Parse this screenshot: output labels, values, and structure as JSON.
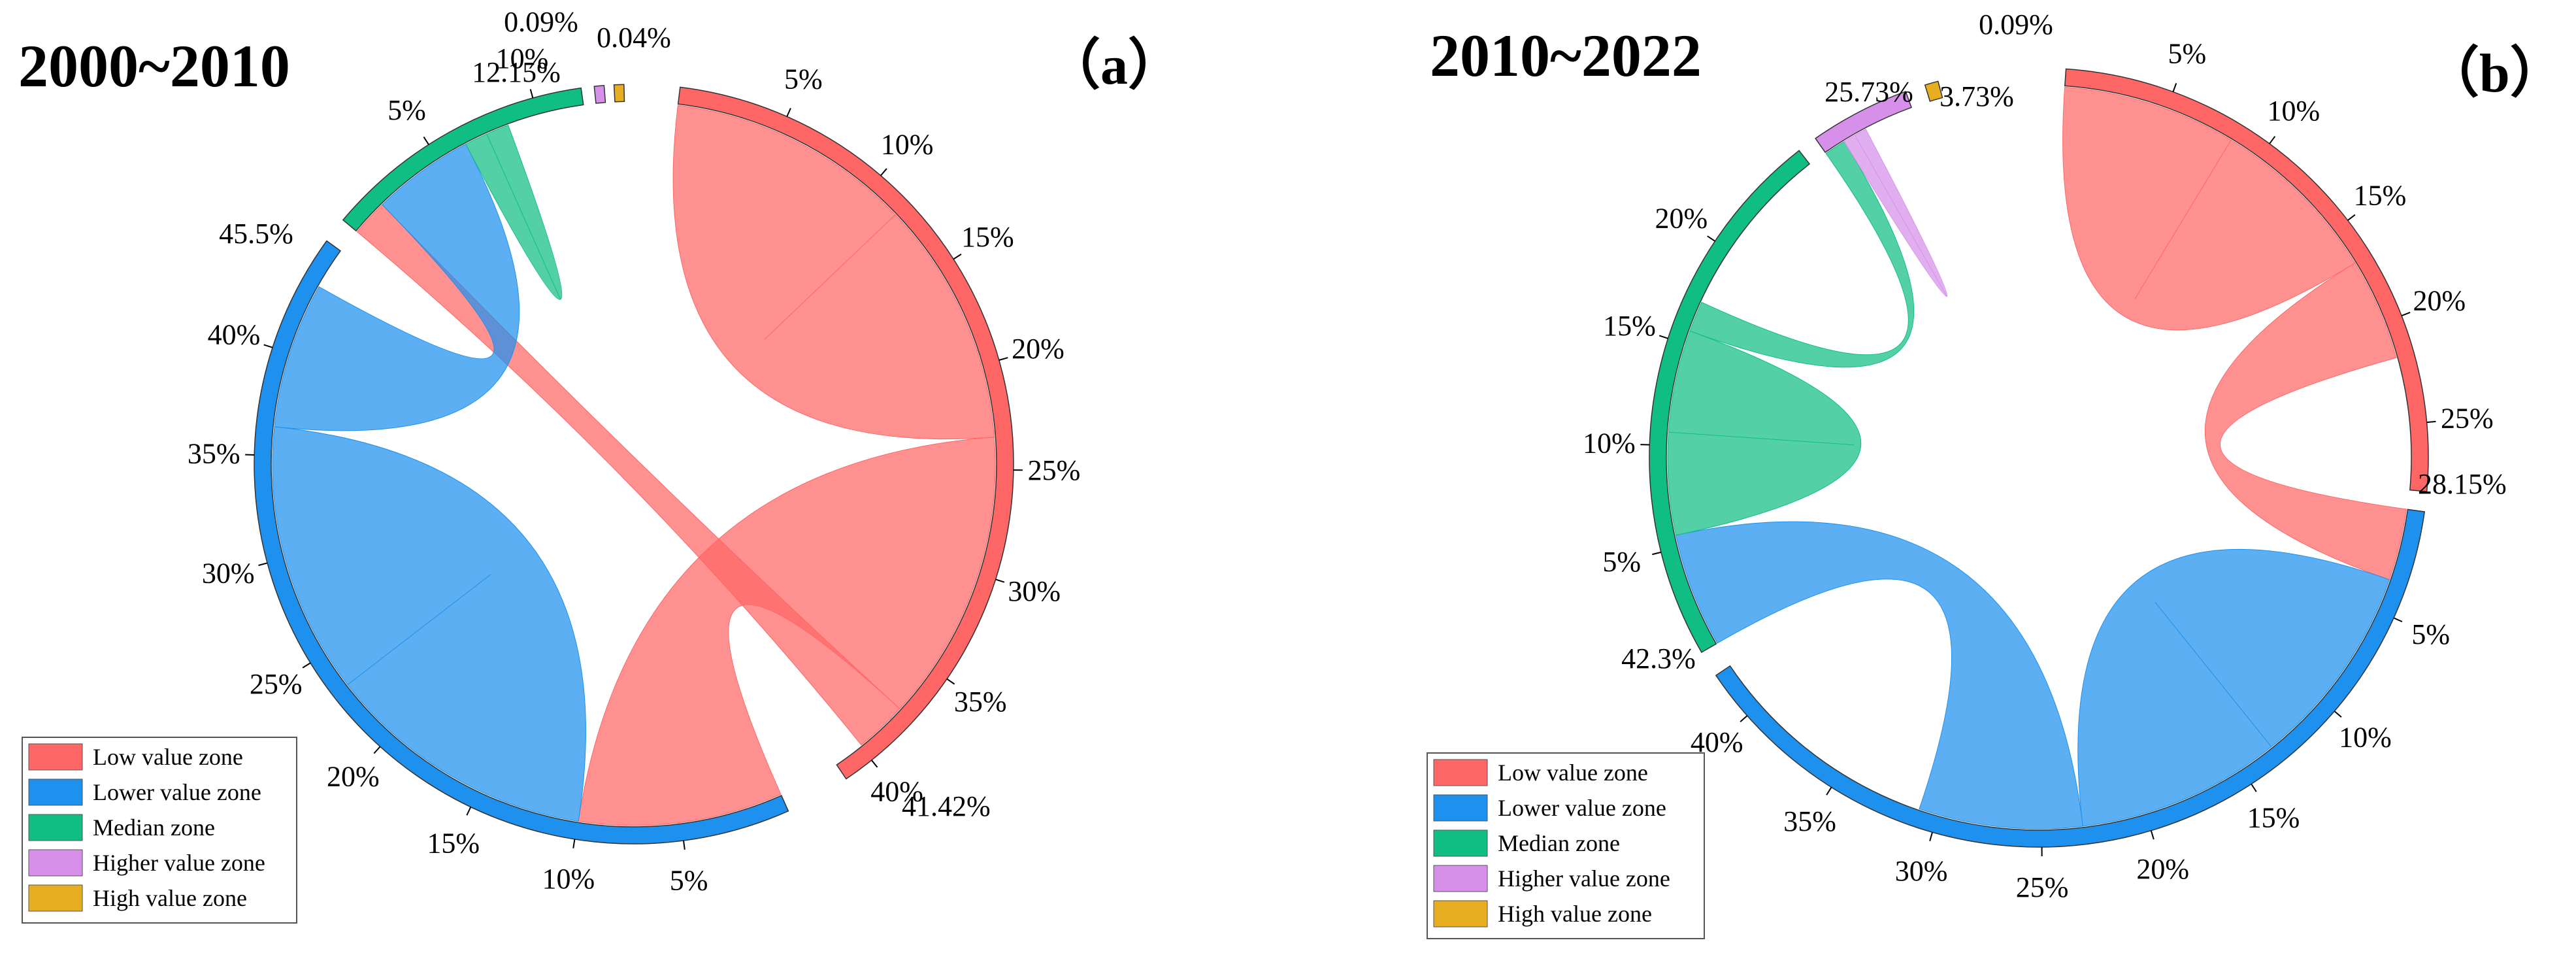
{
  "chart_data": [
    {
      "type": "chord",
      "title": "2000~2010",
      "panel_label": "（a）",
      "legend": [
        {
          "name": "Low value zone",
          "color": "#FF6666"
        },
        {
          "name": "Lower value zone",
          "color": "#1E90EE"
        },
        {
          "name": "Median zone",
          "color": "#10BE84"
        },
        {
          "name": "Higher value zone",
          "color": "#D690EA"
        },
        {
          "name": "High value zone",
          "color": "#E6AE20"
        }
      ],
      "groups": [
        {
          "name": "Low value zone",
          "color": "#FF6666",
          "total_label": "41.42%",
          "ticks": [
            "5%",
            "10%",
            "15%",
            "20%",
            "25%",
            "30%",
            "35%",
            "40%"
          ]
        },
        {
          "name": "Lower value zone",
          "color": "#1E90EE",
          "total_label": "45.5%",
          "ticks": [
            "5%",
            "10%",
            "15%",
            "20%",
            "25%",
            "30%",
            "35%",
            "40%"
          ]
        },
        {
          "name": "Median zone",
          "color": "#10BE84",
          "total_label": "12.15%",
          "ticks": [
            "5%",
            "10%"
          ]
        },
        {
          "name": "Higher value zone",
          "color": "#D690EA",
          "total_label": "0.09%",
          "ticks": []
        },
        {
          "name": "High value zone",
          "color": "#E6AE20",
          "total_label": "0.04%",
          "ticks": []
        }
      ],
      "flows": [
        {
          "from": "Low value zone",
          "to": "Low value zone",
          "value": 23.5
        },
        {
          "from": "Low value zone",
          "to": "Lower value zone",
          "value": 14.0
        },
        {
          "from": "Low value zone",
          "to": "Median zone",
          "value": 2.5
        },
        {
          "from": "Lower value zone",
          "to": "Lower value zone",
          "value": 26.0
        },
        {
          "from": "Lower value zone",
          "to": "Median zone",
          "value": 7.0
        },
        {
          "from": "Median zone",
          "to": "Median zone",
          "value": 2.2
        }
      ]
    },
    {
      "type": "chord",
      "title": "2010~2022",
      "panel_label": "（b）",
      "legend": [
        {
          "name": "Low value zone",
          "color": "#FF6666"
        },
        {
          "name": "Lower value zone",
          "color": "#1E90EE"
        },
        {
          "name": "Median zone",
          "color": "#10BE84"
        },
        {
          "name": "Higher value zone",
          "color": "#D690EA"
        },
        {
          "name": "High value zone",
          "color": "#E6AE20"
        }
      ],
      "groups": [
        {
          "name": "Low value zone",
          "color": "#FF6666",
          "total_label": "28.15%",
          "ticks": [
            "5%",
            "10%",
            "15%",
            "20%",
            "25%"
          ]
        },
        {
          "name": "Lower value zone",
          "color": "#1E90EE",
          "total_label": "42.3%",
          "ticks": [
            "5%",
            "10%",
            "15%",
            "20%",
            "25%",
            "30%",
            "35%",
            "40%"
          ]
        },
        {
          "name": "Median zone",
          "color": "#10BE84",
          "total_label": "25.73%",
          "ticks": [
            "5%",
            "10%",
            "15%",
            "20%"
          ]
        },
        {
          "name": "Higher value zone",
          "color": "#D690EA",
          "total_label": "3.73%",
          "ticks": []
        },
        {
          "name": "High value zone",
          "color": "#E6AE20",
          "total_label": "0.09%",
          "ticks": []
        }
      ],
      "flows": [
        {
          "from": "Low value zone",
          "to": "Low value zone",
          "value": 17.0
        },
        {
          "from": "Low value zone",
          "to": "Lower value zone",
          "value": 5.0
        },
        {
          "from": "Lower value zone",
          "to": "Lower value zone",
          "value": 20.0
        },
        {
          "from": "Lower value zone",
          "to": "Median zone",
          "value": 8.0
        },
        {
          "from": "Median zone",
          "to": "Median zone",
          "value": 10.0
        },
        {
          "from": "Median zone",
          "to": "Higher value zone",
          "value": 1.5
        },
        {
          "from": "Higher value zone",
          "to": "Higher value zone",
          "value": 1.2
        }
      ]
    }
  ]
}
